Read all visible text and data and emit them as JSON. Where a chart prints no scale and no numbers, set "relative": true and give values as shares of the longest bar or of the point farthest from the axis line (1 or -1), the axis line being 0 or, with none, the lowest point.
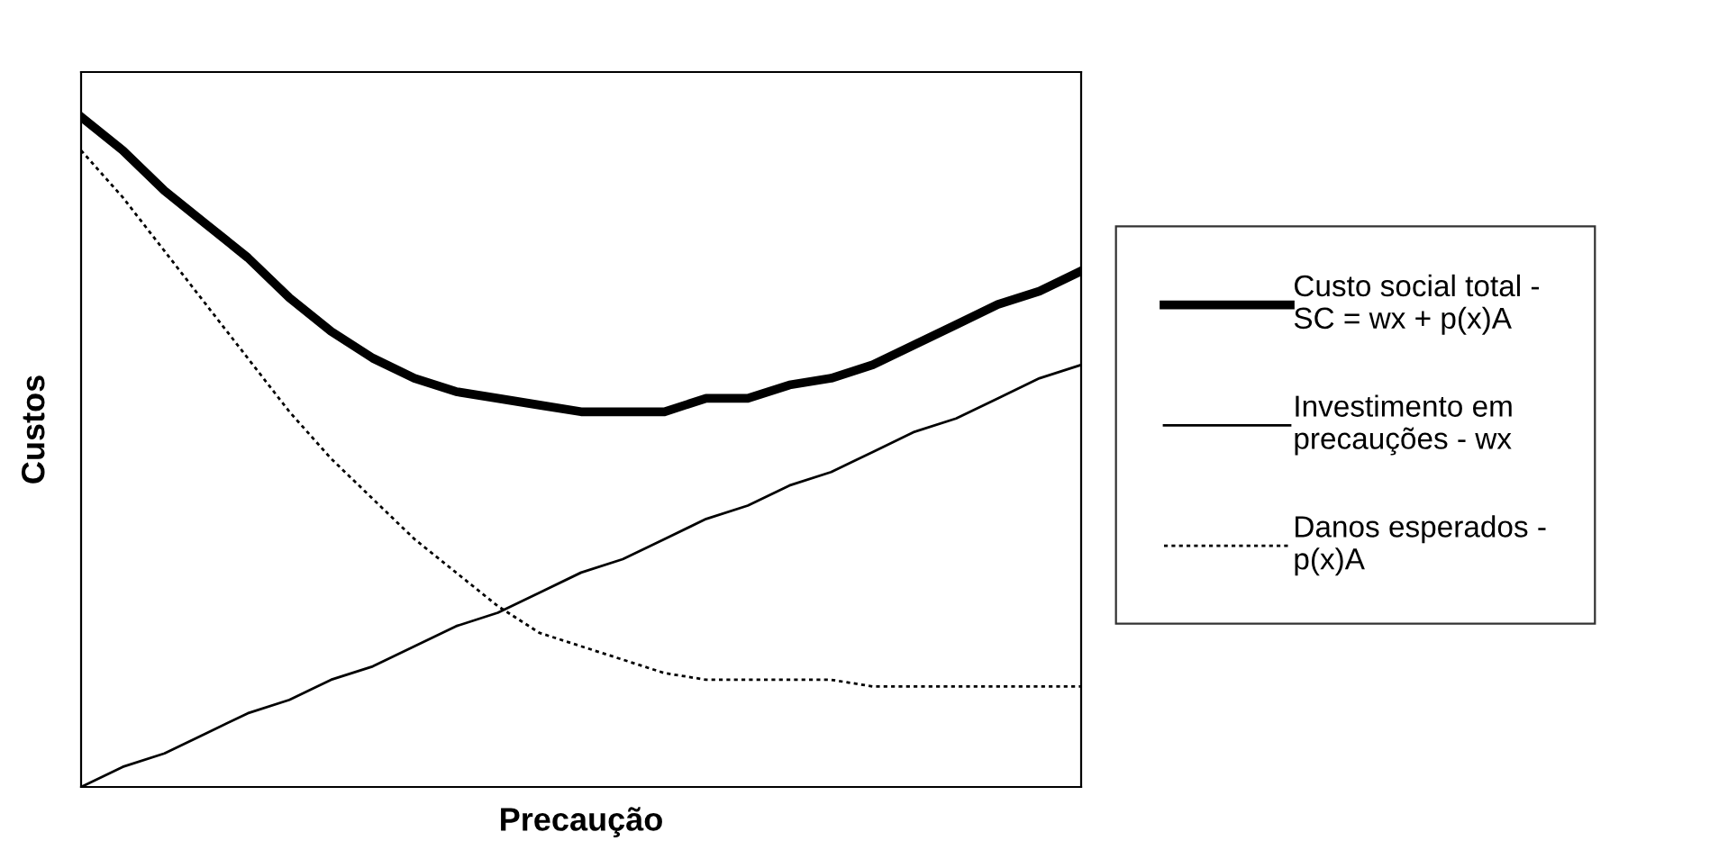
{
  "chart_data": {
    "type": "line",
    "relative": true,
    "xlabel": "Precaução",
    "ylabel": "Custos",
    "legend": "right",
    "marker": "none",
    "categories": [
      null,
      null,
      null,
      null,
      null,
      null,
      null,
      null,
      null,
      null,
      null,
      null,
      null,
      null,
      null,
      null,
      null,
      null,
      null,
      null,
      null,
      null,
      null,
      null,
      null
    ],
    "series": [
      {
        "name": "Custo social total -\nSC = wx + p(x)A",
        "color": "#000000",
        "line_style": "solid",
        "values": [
          1.0,
          0.95,
          0.89,
          0.84,
          0.79,
          0.73,
          0.68,
          0.64,
          0.61,
          0.59,
          0.58,
          0.57,
          0.56,
          0.56,
          0.56,
          0.58,
          0.58,
          0.6,
          0.61,
          0.63,
          0.66,
          0.69,
          0.72,
          0.74,
          0.77
        ]
      },
      {
        "name": "Investimento em\nprecauções - wx",
        "color": "#000000",
        "line_style": "solid",
        "values": [
          0,
          0.03,
          0.05,
          0.08,
          0.11,
          0.13,
          0.16,
          0.18,
          0.21,
          0.24,
          0.26,
          0.29,
          0.32,
          0.34,
          0.37,
          0.4,
          0.42,
          0.45,
          0.47,
          0.5,
          0.53,
          0.55,
          0.58,
          0.61,
          0.63
        ]
      },
      {
        "name": "Danos esperados -\np(x)A",
        "color": "#000000",
        "line_style": "dotted",
        "values": [
          0.95,
          0.88,
          0.8,
          0.72,
          0.64,
          0.56,
          0.49,
          0.43,
          0.37,
          0.32,
          0.27,
          0.23,
          0.21,
          0.19,
          0.17,
          0.16,
          0.16,
          0.16,
          0.16,
          0.15,
          0.15,
          0.15,
          0.15,
          0.15,
          0.15
        ]
      }
    ]
  }
}
